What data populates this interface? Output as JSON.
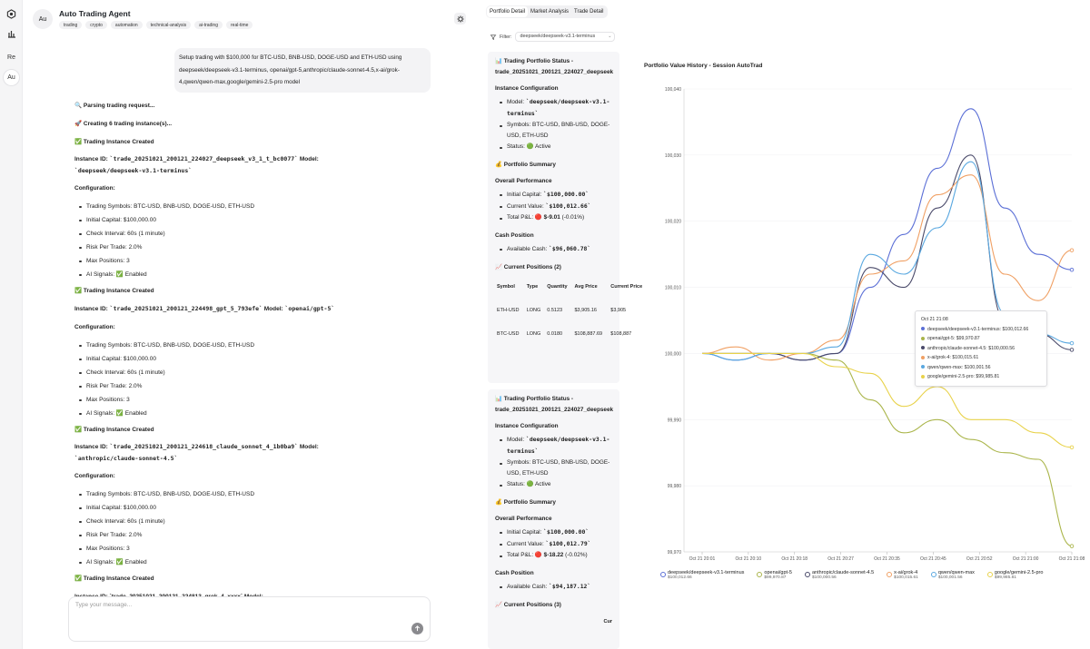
{
  "rail": {
    "items": [
      {
        "name": "logo-icon"
      },
      {
        "name": "chart-icon"
      },
      {
        "label": "Re"
      },
      {
        "label": "Au"
      }
    ]
  },
  "agent": {
    "avatar": "Au",
    "title": "Auto Trading Agent",
    "tags": [
      "trading",
      "crypto",
      "automation",
      "technical-analysis",
      "ai-trading",
      "real-time"
    ]
  },
  "user_message": "Setup trading with $100,000 for BTC-USD, BNB-USD, DOGE-USD and ETH-USD using deepseek/deepseek-v3.1-terminus, openai/gpt-5,anthropic/claude-sonnet-4.5,x-ai/grok-4,qwen/qwen-max,google/gemini-2.5-pro model",
  "assistant": {
    "parsing": "🔍 Parsing trading request...",
    "creating": "🚀 Creating 6 trading instance(s)...",
    "created_label": "✅ Trading Instance Created",
    "instance_id_label": "Instance ID:",
    "model_label": "Model:",
    "configuration_label": "Configuration:",
    "instances": [
      {
        "id": "`trade_20251021_200121_224027_deepseek_v3_1_t_bc0077`",
        "model": "`deepseek/deepseek-v3.1-terminus`"
      },
      {
        "id": "`trade_20251021_200121_224498_gpt_5_793efe`",
        "model": "`openai/gpt-5`"
      },
      {
        "id": "`trade_20251021_200121_224618_claude_sonnet_4_1b0ba9`",
        "model": "`anthropic/claude-sonnet-4.5`"
      }
    ],
    "config_items": [
      "Trading Symbols: BTC-USD, BNB-USD, DOGE-USD, ETH-USD",
      "Initial Capital: $100,000.00",
      "Check Interval: 60s (1 minute)",
      "Risk Per Trade: 2.0%",
      "Max Positions: 3",
      "AI Signals: ✅ Enabled"
    ],
    "partial_line": "Instance ID: `trade_20251021_200121_224813_grok_4_xxxx` Model:"
  },
  "input": {
    "placeholder": "Type your message..."
  },
  "tabs": [
    "Portfolio Detail",
    "Market Analysis",
    "Trade Detail"
  ],
  "filter": {
    "label": "Filter:",
    "value": "deepseek/deepseek-v3.1-terminus"
  },
  "cards": [
    {
      "title": "📊 Trading Portfolio Status - trade_20251021_200121_224027_deepseek",
      "instance_config": "Instance Configuration",
      "model_label": "Model:",
      "model": "`deepseek/deepseek-v3.1-terminus`",
      "symbols": "Symbols: BTC-USD, BNB-USD, DOGE-USD, ETH-USD",
      "status": "Status: 🟢 Active",
      "summary": "💰 Portfolio Summary",
      "overall": "Overall Performance",
      "initial_label": "Initial Capital:",
      "initial": "`$100,000.00`",
      "current_label": "Current Value:",
      "current": "`$100,012.66`",
      "pnl_label": "Total P&L:",
      "pnl": "🔴 $-9.01",
      "pnl_pct": "(-0.01%)",
      "cash_title": "Cash Position",
      "cash_label": "Available Cash:",
      "cash": "`$96,060.78`",
      "positions_title": "📈 Current Positions (2)",
      "table_headers": [
        "Symbol",
        "Type",
        "Quantity",
        "Avg Price",
        "Current Price"
      ],
      "table_rows": [
        [
          "ETH-USD",
          "LONG",
          "0.5123",
          "$3,905.16",
          "$3,905"
        ],
        [
          "BTC-USD",
          "LONG",
          "0.0180",
          "$108,887.69",
          "$108,887"
        ]
      ]
    },
    {
      "title": "📊 Trading Portfolio Status - trade_20251021_200121_224027_deepseek",
      "instance_config": "Instance Configuration",
      "model_label": "Model:",
      "model": "`deepseek/deepseek-v3.1-terminus`",
      "symbols": "Symbols: BTC-USD, BNB-USD, DOGE-USD, ETH-USD",
      "status": "Status: 🟢 Active",
      "summary": "💰 Portfolio Summary",
      "overall": "Overall Performance",
      "initial_label": "Initial Capital:",
      "initial": "`$100,000.00`",
      "current_label": "Current Value:",
      "current": "`$100,012.79`",
      "pnl_label": "Total P&L:",
      "pnl": "🔴 $-18.22",
      "pnl_pct": "(-0.02%)",
      "cash_title": "Cash Position",
      "cash_label": "Available Cash:",
      "cash": "`$94,187.12`",
      "positions_title": "📈 Current Positions (3)",
      "trailing": "Cur"
    }
  ],
  "chart_data": {
    "type": "line",
    "title": "Portfolio Value History - Session AutoTrad",
    "ylim": [
      99970,
      100040
    ],
    "yticks": [
      "100,040",
      "100,030",
      "100,020",
      "100,010",
      "100,000",
      "99,990",
      "99,980",
      "99,970"
    ],
    "xticks": [
      "Oct 21 20:01",
      "Oct 21 20:10",
      "Oct 21 20:18",
      "Oct 21 20:27",
      "Oct 21 20:35",
      "Oct 21 20:45",
      "Oct 21 20:52",
      "Oct 21 21:00",
      "Oct 21 21:08"
    ],
    "series": [
      {
        "name": "deepseek/deepseek-v3.1-terminus",
        "color": "#5b6fd6",
        "final": "$100,012.66",
        "values": [
          100000,
          99999,
          100000,
          99999,
          100000,
          100010,
          100018,
          100028,
          100037,
          100022,
          100015,
          100012.66
        ]
      },
      {
        "name": "openai/gpt-5",
        "color": "#aab54a",
        "final": "$99,970.87",
        "values": [
          100000,
          100000,
          100000,
          100000,
          99999,
          99993,
          99988,
          99990,
          99987,
          99985,
          99984,
          99970.87
        ]
      },
      {
        "name": "anthropic/claude-sonnet-4.5",
        "color": "#4a4a6a",
        "final": "$100,000.56",
        "values": [
          100000,
          100000,
          100000,
          99999,
          100000,
          100013,
          100010,
          100022,
          100030,
          100005,
          100003,
          100000.56
        ]
      },
      {
        "name": "x-ai/grok-4",
        "color": "#f0a064",
        "final": "$100,015.61",
        "values": [
          100000,
          100001,
          99999,
          100000,
          100002,
          100012,
          100014,
          100024,
          100027,
          100012,
          100008,
          100015.61
        ]
      },
      {
        "name": "qwen/qwen-max",
        "color": "#5aa8e0",
        "final": "$100,001.56",
        "values": [
          100000,
          99999,
          100000,
          100000,
          100001,
          100015,
          100012,
          100019,
          100029,
          100006,
          100003,
          100001.56
        ]
      },
      {
        "name": "google/gemini-2.5-pro",
        "color": "#e8d24a",
        "final": "$99,985.81",
        "values": [
          100000,
          100000,
          100000,
          100000,
          99998,
          99997,
          99992,
          99995,
          99990,
          99990,
          99988,
          99985.81
        ]
      }
    ],
    "tooltip": {
      "time": "Oct 21 21:08",
      "entries": [
        "deepseek/deepseek-v3.1-terminus: $100,012.66",
        "openai/gpt-5: $99,970.87",
        "anthropic/claude-sonnet-4.5: $100,000.56",
        "x-ai/grok-4: $100,015.61",
        "qwen/qwen-max: $100,001.56",
        "google/gemini-2.5-pro: $99,985.81"
      ]
    }
  }
}
